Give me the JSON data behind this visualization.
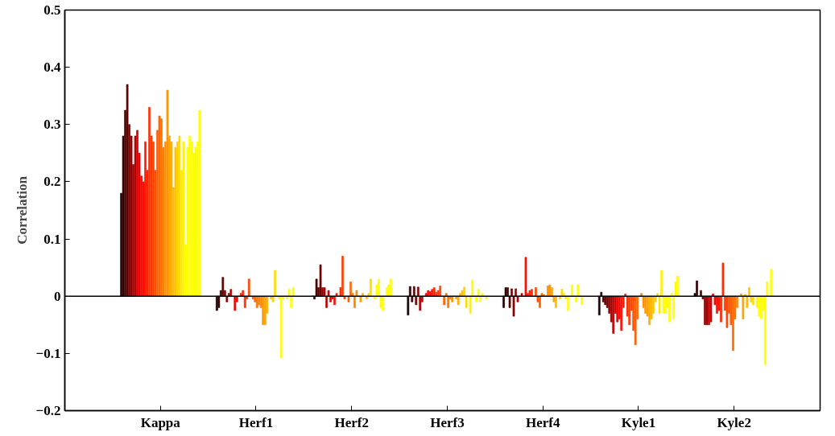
{
  "chart_data": {
    "type": "bar",
    "ylabel": "Correlation",
    "categories": [
      "Kappa",
      "Herf1",
      "Herf2",
      "Herf3",
      "Herf4",
      "Kyle1",
      "Kyle2"
    ],
    "ylim": [
      -0.2,
      0.5
    ],
    "yticks": [
      {
        "value": -0.2,
        "label": "−0.2"
      },
      {
        "value": -0.1,
        "label": "−0.1"
      },
      0,
      0.1,
      0.2,
      0.3,
      0.4,
      0.5
    ],
    "grid": false,
    "ref_lines": [
      {
        "axis": "y",
        "value": 0,
        "label": null,
        "color": "#000000"
      }
    ],
    "series": [
      {
        "color": "#1a0000",
        "values": [
          0.18,
          -0.025,
          0.0,
          -0.033,
          -0.02,
          -0.033,
          0.005
        ]
      },
      {
        "color": "#300000",
        "values": [
          0.28,
          -0.02,
          -0.005,
          0.017,
          0.015,
          0.007,
          0.027
        ]
      },
      {
        "color": "#470000",
        "values": [
          0.325,
          0.01,
          0.03,
          -0.01,
          0.015,
          -0.01,
          0.0
        ]
      },
      {
        "color": "#5e0000",
        "values": [
          0.37,
          0.033,
          0.015,
          0.017,
          -0.02,
          -0.015,
          0.01
        ]
      },
      {
        "color": "#750000",
        "values": [
          0.3,
          0.01,
          0.055,
          -0.015,
          0.013,
          -0.02,
          -0.005
        ]
      },
      {
        "color": "#8c0000",
        "values": [
          0.28,
          -0.01,
          0.015,
          0.016,
          -0.035,
          -0.03,
          -0.05
        ]
      },
      {
        "color": "#a30000",
        "values": [
          0.23,
          0.005,
          0.015,
          -0.025,
          0.013,
          -0.045,
          -0.05
        ]
      },
      {
        "color": "#ba0000",
        "values": [
          0.28,
          0.012,
          -0.02,
          -0.01,
          -0.01,
          -0.065,
          -0.05
        ]
      },
      {
        "color": "#d10000",
        "values": [
          0.29,
          0.0,
          0.01,
          0.0,
          0.0,
          -0.03,
          -0.045
        ]
      },
      {
        "color": "#e80000",
        "values": [
          0.25,
          -0.025,
          -0.01,
          0.005,
          0.005,
          -0.045,
          0.004
        ]
      },
      {
        "color": "#ff0000",
        "values": [
          0.21,
          -0.01,
          -0.005,
          0.01,
          0.0,
          -0.04,
          -0.015
        ]
      },
      {
        "color": "#ff0c00",
        "values": [
          0.2,
          0.0,
          -0.015,
          0.008,
          0.068,
          -0.06,
          -0.03
        ]
      },
      {
        "color": "#ff1700",
        "values": [
          0.27,
          0.005,
          0.005,
          0.012,
          0.005,
          -0.02,
          -0.025
        ]
      },
      {
        "color": "#ff2300",
        "values": [
          0.22,
          0.01,
          0.0,
          0.015,
          0.01,
          0.004,
          -0.045
        ]
      },
      {
        "color": "#ff2e00",
        "values": [
          0.33,
          -0.02,
          0.015,
          0.007,
          0.012,
          -0.035,
          0.058
        ]
      },
      {
        "color": "#ff3a00",
        "values": [
          0.28,
          -0.005,
          0.07,
          0.01,
          0.0,
          -0.05,
          -0.025
        ]
      },
      {
        "color": "#ff4600",
        "values": [
          0.27,
          0.03,
          -0.005,
          0.018,
          0.015,
          -0.025,
          -0.055
        ]
      },
      {
        "color": "#ff5100",
        "values": [
          0.22,
          0.0,
          0.0,
          0.0,
          -0.01,
          -0.06,
          -0.03
        ]
      },
      {
        "color": "#ff5d00",
        "values": [
          0.29,
          -0.005,
          -0.01,
          -0.015,
          -0.02,
          -0.085,
          -0.05
        ]
      },
      {
        "color": "#ff6800",
        "values": [
          0.315,
          -0.01,
          0.025,
          0.005,
          0.005,
          -0.04,
          -0.095
        ]
      },
      {
        "color": "#ff7400",
        "values": [
          0.31,
          -0.02,
          0.005,
          -0.02,
          0.003,
          0.0,
          -0.04
        ]
      },
      {
        "color": "#ff7f00",
        "values": [
          0.26,
          -0.015,
          -0.02,
          -0.005,
          0.0,
          0.005,
          -0.02
        ]
      },
      {
        "color": "#ff8b00",
        "values": [
          0.27,
          -0.02,
          0.01,
          -0.01,
          0.018,
          -0.02,
          0.0
        ]
      },
      {
        "color": "#ff9700",
        "values": [
          0.36,
          -0.05,
          0.0,
          0.0,
          0.02,
          -0.03,
          0.004
        ]
      },
      {
        "color": "#ffa200",
        "values": [
          0.28,
          -0.05,
          -0.01,
          -0.005,
          0.015,
          -0.035,
          -0.04
        ]
      },
      {
        "color": "#ffae00",
        "values": [
          0.27,
          -0.03,
          0.005,
          -0.015,
          -0.01,
          -0.05,
          0.003
        ]
      },
      {
        "color": "#ffb900",
        "values": [
          0.19,
          0.0,
          0.0,
          0.005,
          -0.02,
          -0.04,
          -0.02
        ]
      },
      {
        "color": "#ffc500",
        "values": [
          0.26,
          -0.005,
          -0.005,
          0.01,
          0.0,
          -0.03,
          0.015
        ]
      },
      {
        "color": "#ffd100",
        "values": [
          0.27,
          -0.01,
          0.005,
          0.016,
          -0.005,
          -0.01,
          -0.01
        ]
      },
      {
        "color": "#ffdc00",
        "values": [
          0.28,
          0.045,
          0.03,
          -0.02,
          0.012,
          0.005,
          -0.015
        ]
      },
      {
        "color": "#ffe800",
        "values": [
          0.22,
          0.0,
          0.0,
          0.0,
          0.005,
          -0.03,
          0.0
        ]
      },
      {
        "color": "#fff300",
        "values": [
          0.27,
          -0.005,
          -0.005,
          -0.03,
          -0.005,
          0.045,
          -0.02
        ]
      },
      {
        "color": "#ffff00",
        "values": [
          0.09,
          -0.108,
          0.02,
          0.028,
          -0.025,
          -0.03,
          -0.035
        ]
      },
      {
        "color": "#ffff00",
        "values": [
          0.26,
          -0.005,
          0.03,
          0.0,
          0.0,
          -0.03,
          -0.04
        ]
      },
      {
        "color": "#ffff00",
        "values": [
          0.28,
          0.0,
          -0.02,
          -0.01,
          0.02,
          -0.02,
          -0.025
        ]
      },
      {
        "color": "#ffff00",
        "values": [
          0.27,
          -0.005,
          -0.025,
          0.012,
          0.0,
          -0.045,
          -0.12
        ]
      },
      {
        "color": "#ffff00",
        "values": [
          0.25,
          0.012,
          0.0,
          -0.01,
          -0.01,
          0.005,
          0.025
        ]
      },
      {
        "color": "#ffff00",
        "values": [
          0.26,
          -0.02,
          0.015,
          0.005,
          0.02,
          -0.04,
          0.0
        ]
      },
      {
        "color": "#ffff00",
        "values": [
          0.27,
          0.015,
          0.02,
          0.0,
          0.0,
          0.025,
          0.047
        ]
      },
      {
        "color": "#ffff00",
        "values": [
          0.325,
          0.0,
          0.03,
          -0.005,
          -0.015,
          0.035,
          0.0
        ]
      }
    ]
  }
}
